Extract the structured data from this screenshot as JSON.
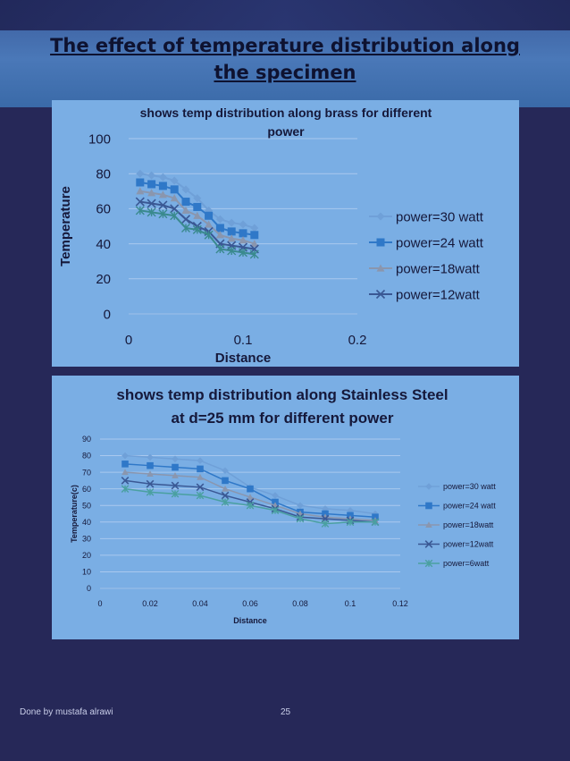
{
  "slide": {
    "title_line1": "The effect of temperature distribution along",
    "title_line2": "the specimen",
    "footer_left": "Done by mustafa alrawi",
    "page_number": "25"
  },
  "chart_data": [
    {
      "type": "line",
      "title_line1": "shows temp distribution along brass for different",
      "title_line2": "power",
      "xlabel": "Distance",
      "ylabel": "Temperature",
      "xlim": [
        0,
        0.2
      ],
      "ylim": [
        0,
        100
      ],
      "xticks": [
        "0",
        "0.1",
        "0.2"
      ],
      "yticks": [
        "0",
        "20",
        "40",
        "60",
        "80",
        "100"
      ],
      "grid": true,
      "legend_position": "right",
      "x": [
        0.01,
        0.02,
        0.03,
        0.04,
        0.05,
        0.06,
        0.07,
        0.08,
        0.09,
        0.1,
        0.11
      ],
      "series": [
        {
          "name": "power=30 watt",
          "marker": "diamond",
          "color": "#6fa0d8",
          "values": [
            80,
            79,
            78,
            76,
            71,
            66,
            59,
            54,
            52,
            51,
            49
          ]
        },
        {
          "name": "power=24 watt",
          "marker": "square",
          "color": "#2f78c8",
          "values": [
            75,
            74,
            73,
            71,
            64,
            61,
            56,
            49,
            47,
            46,
            45
          ]
        },
        {
          "name": "power=18watt",
          "marker": "triangle",
          "color": "#8a96ae",
          "values": [
            70,
            69,
            68,
            66,
            59,
            56,
            51,
            45,
            43,
            42,
            40
          ]
        },
        {
          "name": "power=12watt",
          "marker": "x",
          "color": "#3a5894",
          "values": [
            64,
            63,
            62,
            60,
            54,
            50,
            47,
            40,
            39,
            38,
            37
          ]
        },
        {
          "name": "",
          "marker": "star",
          "color": "#3a8a8e",
          "values": [
            59,
            58,
            57,
            56,
            49,
            48,
            45,
            37,
            36,
            35,
            34
          ]
        }
      ]
    },
    {
      "type": "line",
      "title_line1": "shows temp distribution along Stainless Steel",
      "title_line2": "at d=25 mm for different  power",
      "xlabel": "Distance",
      "ylabel": "Temperature(c)",
      "xlim": [
        0,
        0.12
      ],
      "ylim": [
        0,
        90
      ],
      "xticks": [
        "0",
        "0.02",
        "0.04",
        "0.06",
        "0.08",
        "0.1",
        "0.12"
      ],
      "yticks": [
        "0",
        "10",
        "20",
        "30",
        "40",
        "50",
        "60",
        "70",
        "80",
        "90"
      ],
      "grid": true,
      "legend_position": "right",
      "x": [
        0.01,
        0.02,
        0.03,
        0.04,
        0.05,
        0.06,
        0.07,
        0.08,
        0.09,
        0.1,
        0.11
      ],
      "series": [
        {
          "name": "power=30 watt",
          "marker": "diamond",
          "color": "#6fa0d8",
          "values": [
            80,
            79,
            78,
            77,
            71,
            61,
            56,
            50,
            48,
            47,
            45
          ]
        },
        {
          "name": "power=24 watt",
          "marker": "square",
          "color": "#2f78c8",
          "values": [
            75,
            74,
            73,
            72,
            65,
            60,
            52,
            46,
            45,
            44,
            43
          ]
        },
        {
          "name": "power=18watt",
          "marker": "triangle",
          "color": "#8a96ae",
          "values": [
            70,
            69,
            68,
            67,
            60,
            55,
            50,
            45,
            43,
            42,
            41
          ]
        },
        {
          "name": "power=12watt",
          "marker": "x",
          "color": "#3a5894",
          "values": [
            65,
            63,
            62,
            61,
            56,
            52,
            48,
            43,
            42,
            41,
            40
          ]
        },
        {
          "name": "power=6watt",
          "marker": "star",
          "color": "#4aa0a0",
          "values": [
            60,
            58,
            57,
            56,
            52,
            50,
            47,
            42,
            39,
            40,
            40
          ]
        }
      ]
    }
  ]
}
